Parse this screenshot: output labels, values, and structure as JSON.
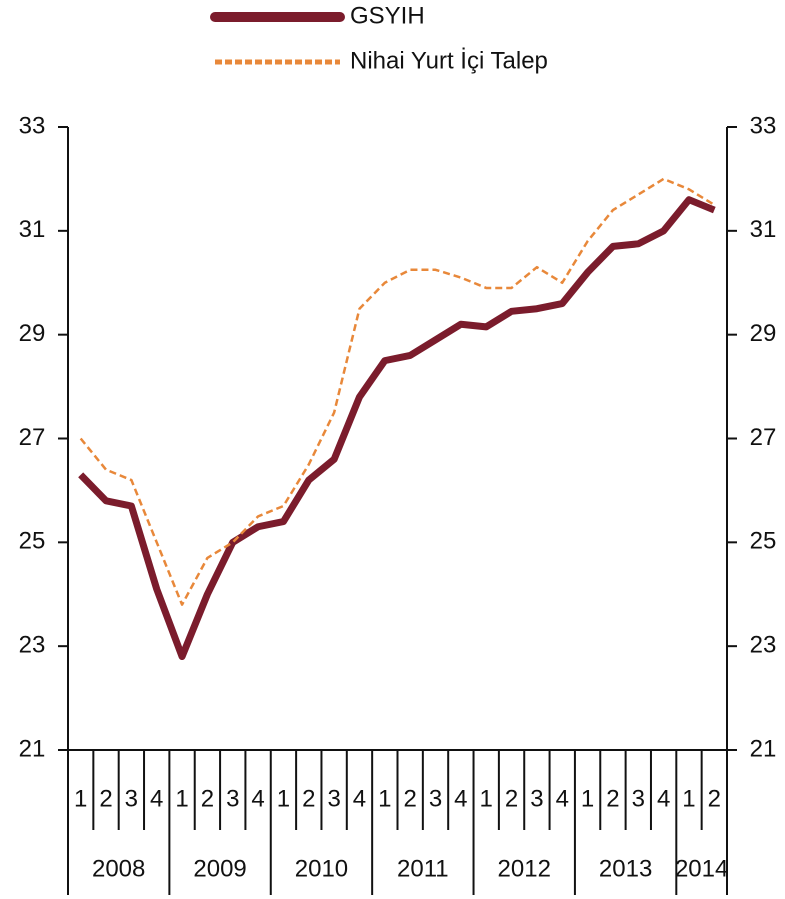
{
  "chart_data": {
    "type": "line",
    "categories": [
      "1",
      "2",
      "3",
      "4",
      "1",
      "2",
      "3",
      "4",
      "1",
      "2",
      "3",
      "4",
      "1",
      "2",
      "3",
      "4",
      "1",
      "2",
      "3",
      "4",
      "1",
      "2",
      "3",
      "4",
      "1",
      "2"
    ],
    "years": [
      "2008",
      "2009",
      "2010",
      "2011",
      "2012",
      "2013",
      "2014"
    ],
    "series": [
      {
        "name": "GSYIH",
        "color": "#7b1c2c",
        "values": [
          26.3,
          25.8,
          25.7,
          24.1,
          22.8,
          24.0,
          25.0,
          25.3,
          25.4,
          26.2,
          26.6,
          27.8,
          28.5,
          28.6,
          28.9,
          29.2,
          29.15,
          29.45,
          29.5,
          29.6,
          30.2,
          30.7,
          30.75,
          31.0,
          31.6,
          31.4
        ]
      },
      {
        "name": "Nihai Yurt İçi Talep",
        "color": "#e8883a",
        "dashed": true,
        "values": [
          27.0,
          26.4,
          26.2,
          25.0,
          23.8,
          24.7,
          25.0,
          25.5,
          25.7,
          26.5,
          27.5,
          29.5,
          30.0,
          30.25,
          30.25,
          30.1,
          29.9,
          29.9,
          30.3,
          30.0,
          30.8,
          31.4,
          31.7,
          32.0,
          31.8,
          31.5
        ]
      }
    ],
    "ylim": [
      21,
      33
    ],
    "yticks": [
      21,
      23,
      25,
      27,
      29,
      31,
      33
    ],
    "y2lim": [
      21,
      33
    ],
    "y2ticks": [
      21,
      23,
      25,
      27,
      29,
      31,
      33
    ]
  }
}
